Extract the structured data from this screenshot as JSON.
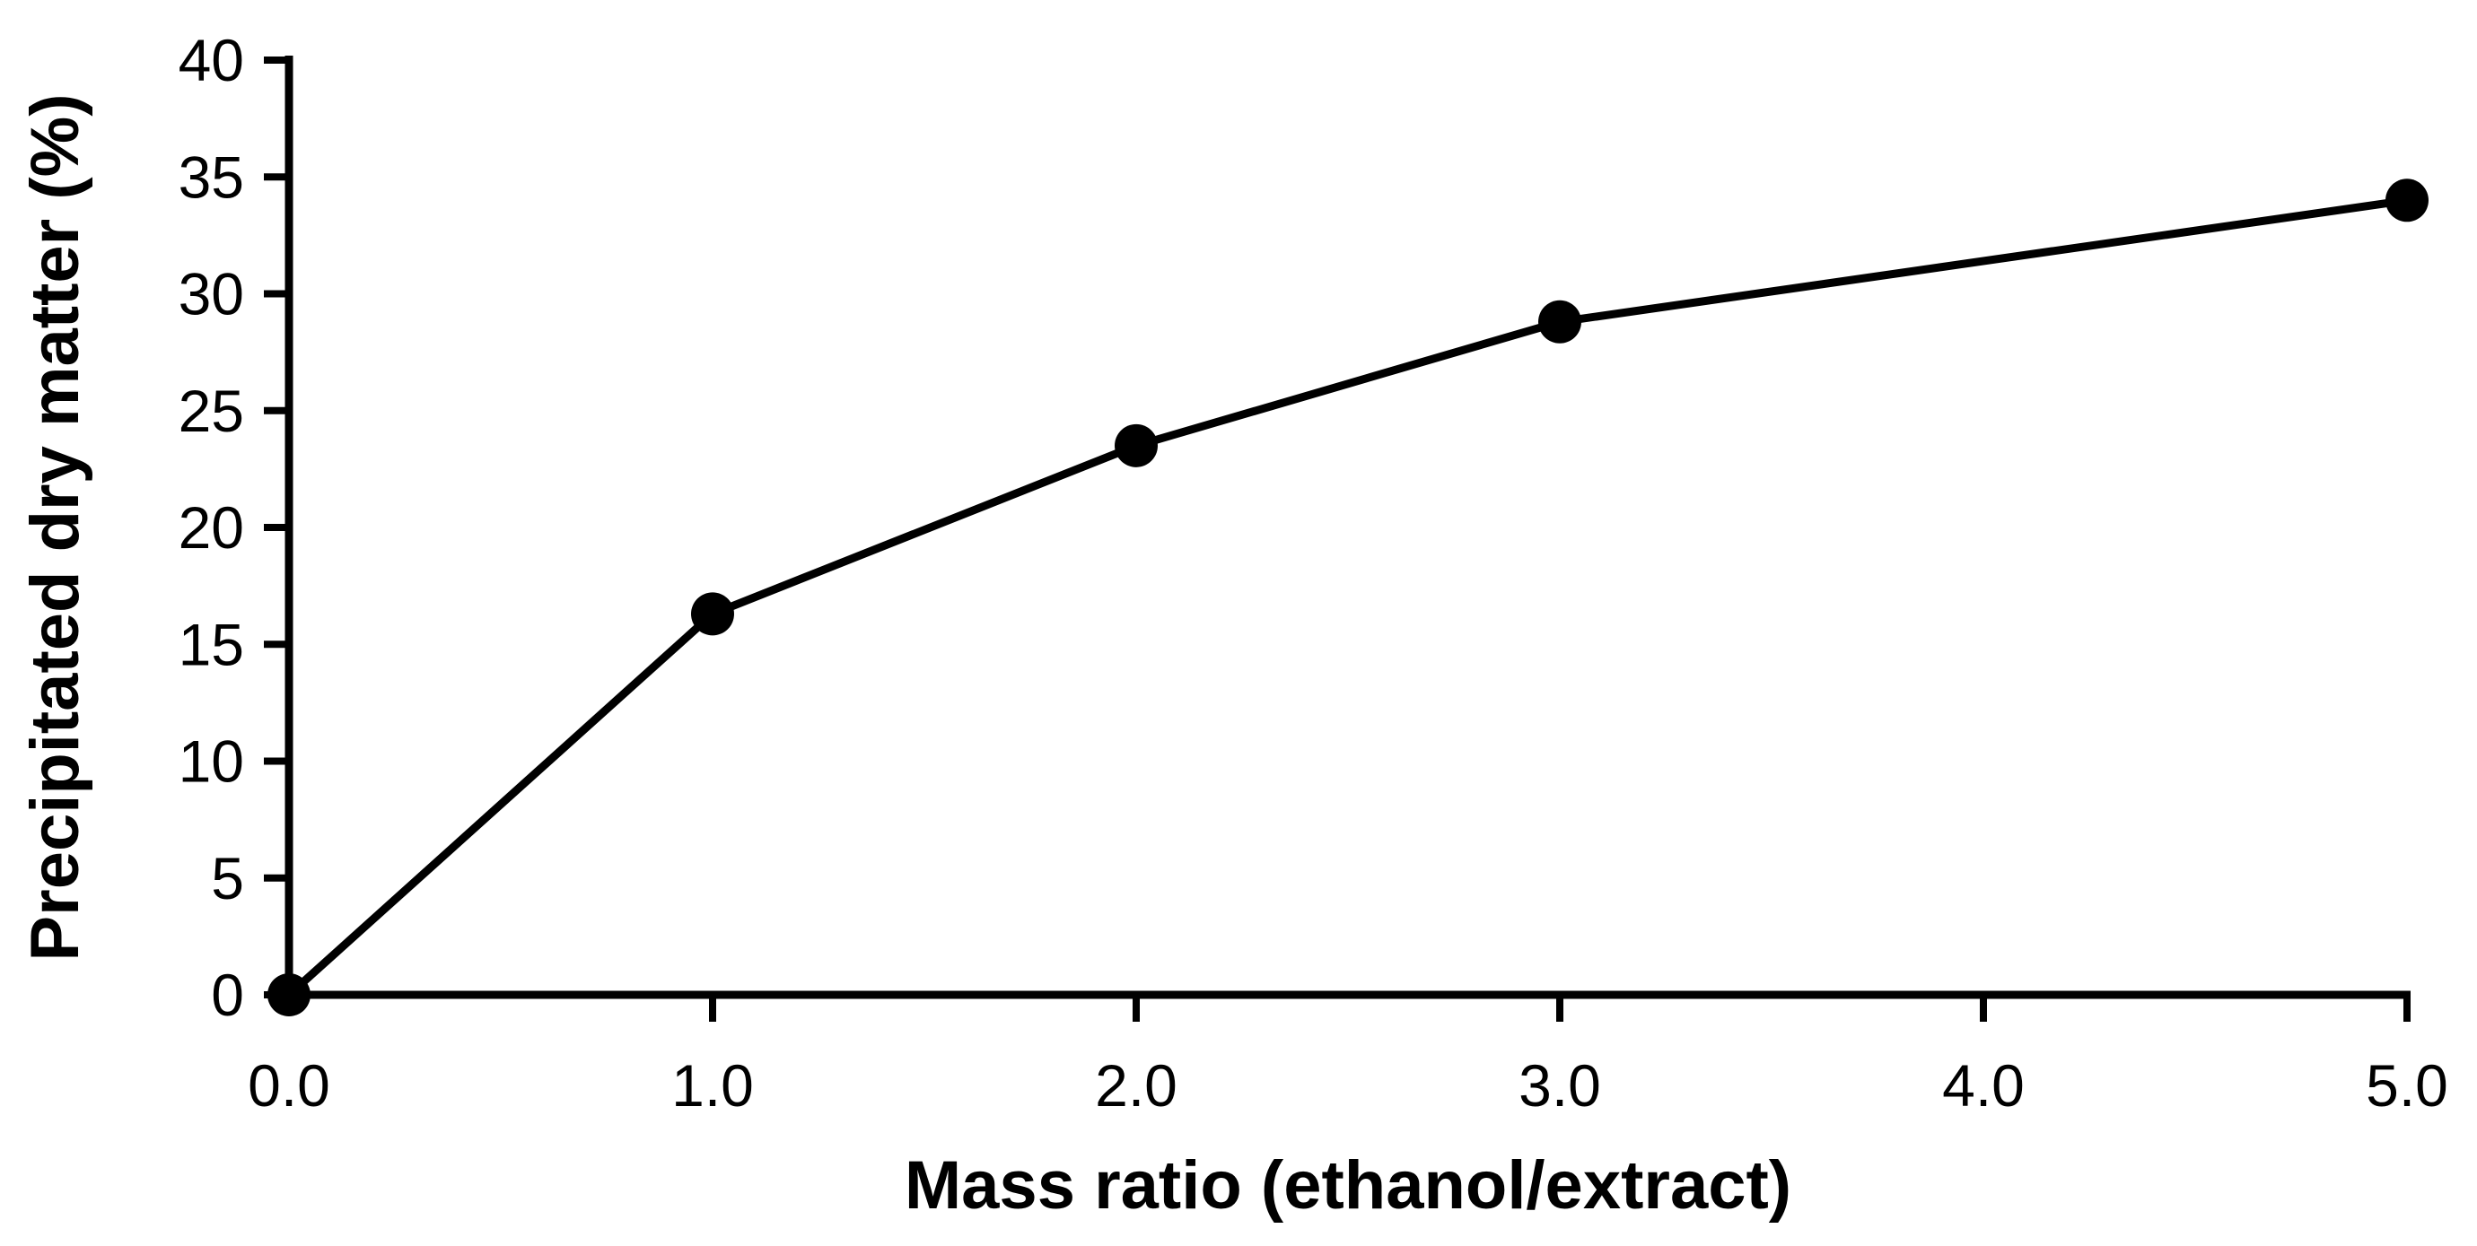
{
  "chart_data": {
    "type": "line",
    "title": "",
    "xlabel": "Mass ratio (ethanol/extract)",
    "ylabel": "Precipitated dry matter (%)",
    "xlim": [
      0,
      5
    ],
    "ylim": [
      0,
      40
    ],
    "grid": false,
    "legend": false,
    "background_color": "#ffffff",
    "line_color": "#000000",
    "marker": "filled-circle",
    "xticks": {
      "values": [
        0,
        1,
        2,
        3,
        4,
        5
      ],
      "labels": [
        "0.0",
        "1.0",
        "2.0",
        "3.0",
        "4.0",
        "5.0"
      ]
    },
    "yticks": {
      "values": [
        0,
        5,
        10,
        15,
        20,
        25,
        30,
        35,
        40
      ],
      "labels": [
        "0",
        "5",
        "10",
        "15",
        "20",
        "25",
        "30",
        "35",
        "40"
      ]
    },
    "series": [
      {
        "name": "Precipitated dry matter",
        "x": [
          0.0,
          1.0,
          2.0,
          3.0,
          5.0
        ],
        "y": [
          0.0,
          16.3,
          23.5,
          28.8,
          34.0
        ]
      }
    ]
  }
}
